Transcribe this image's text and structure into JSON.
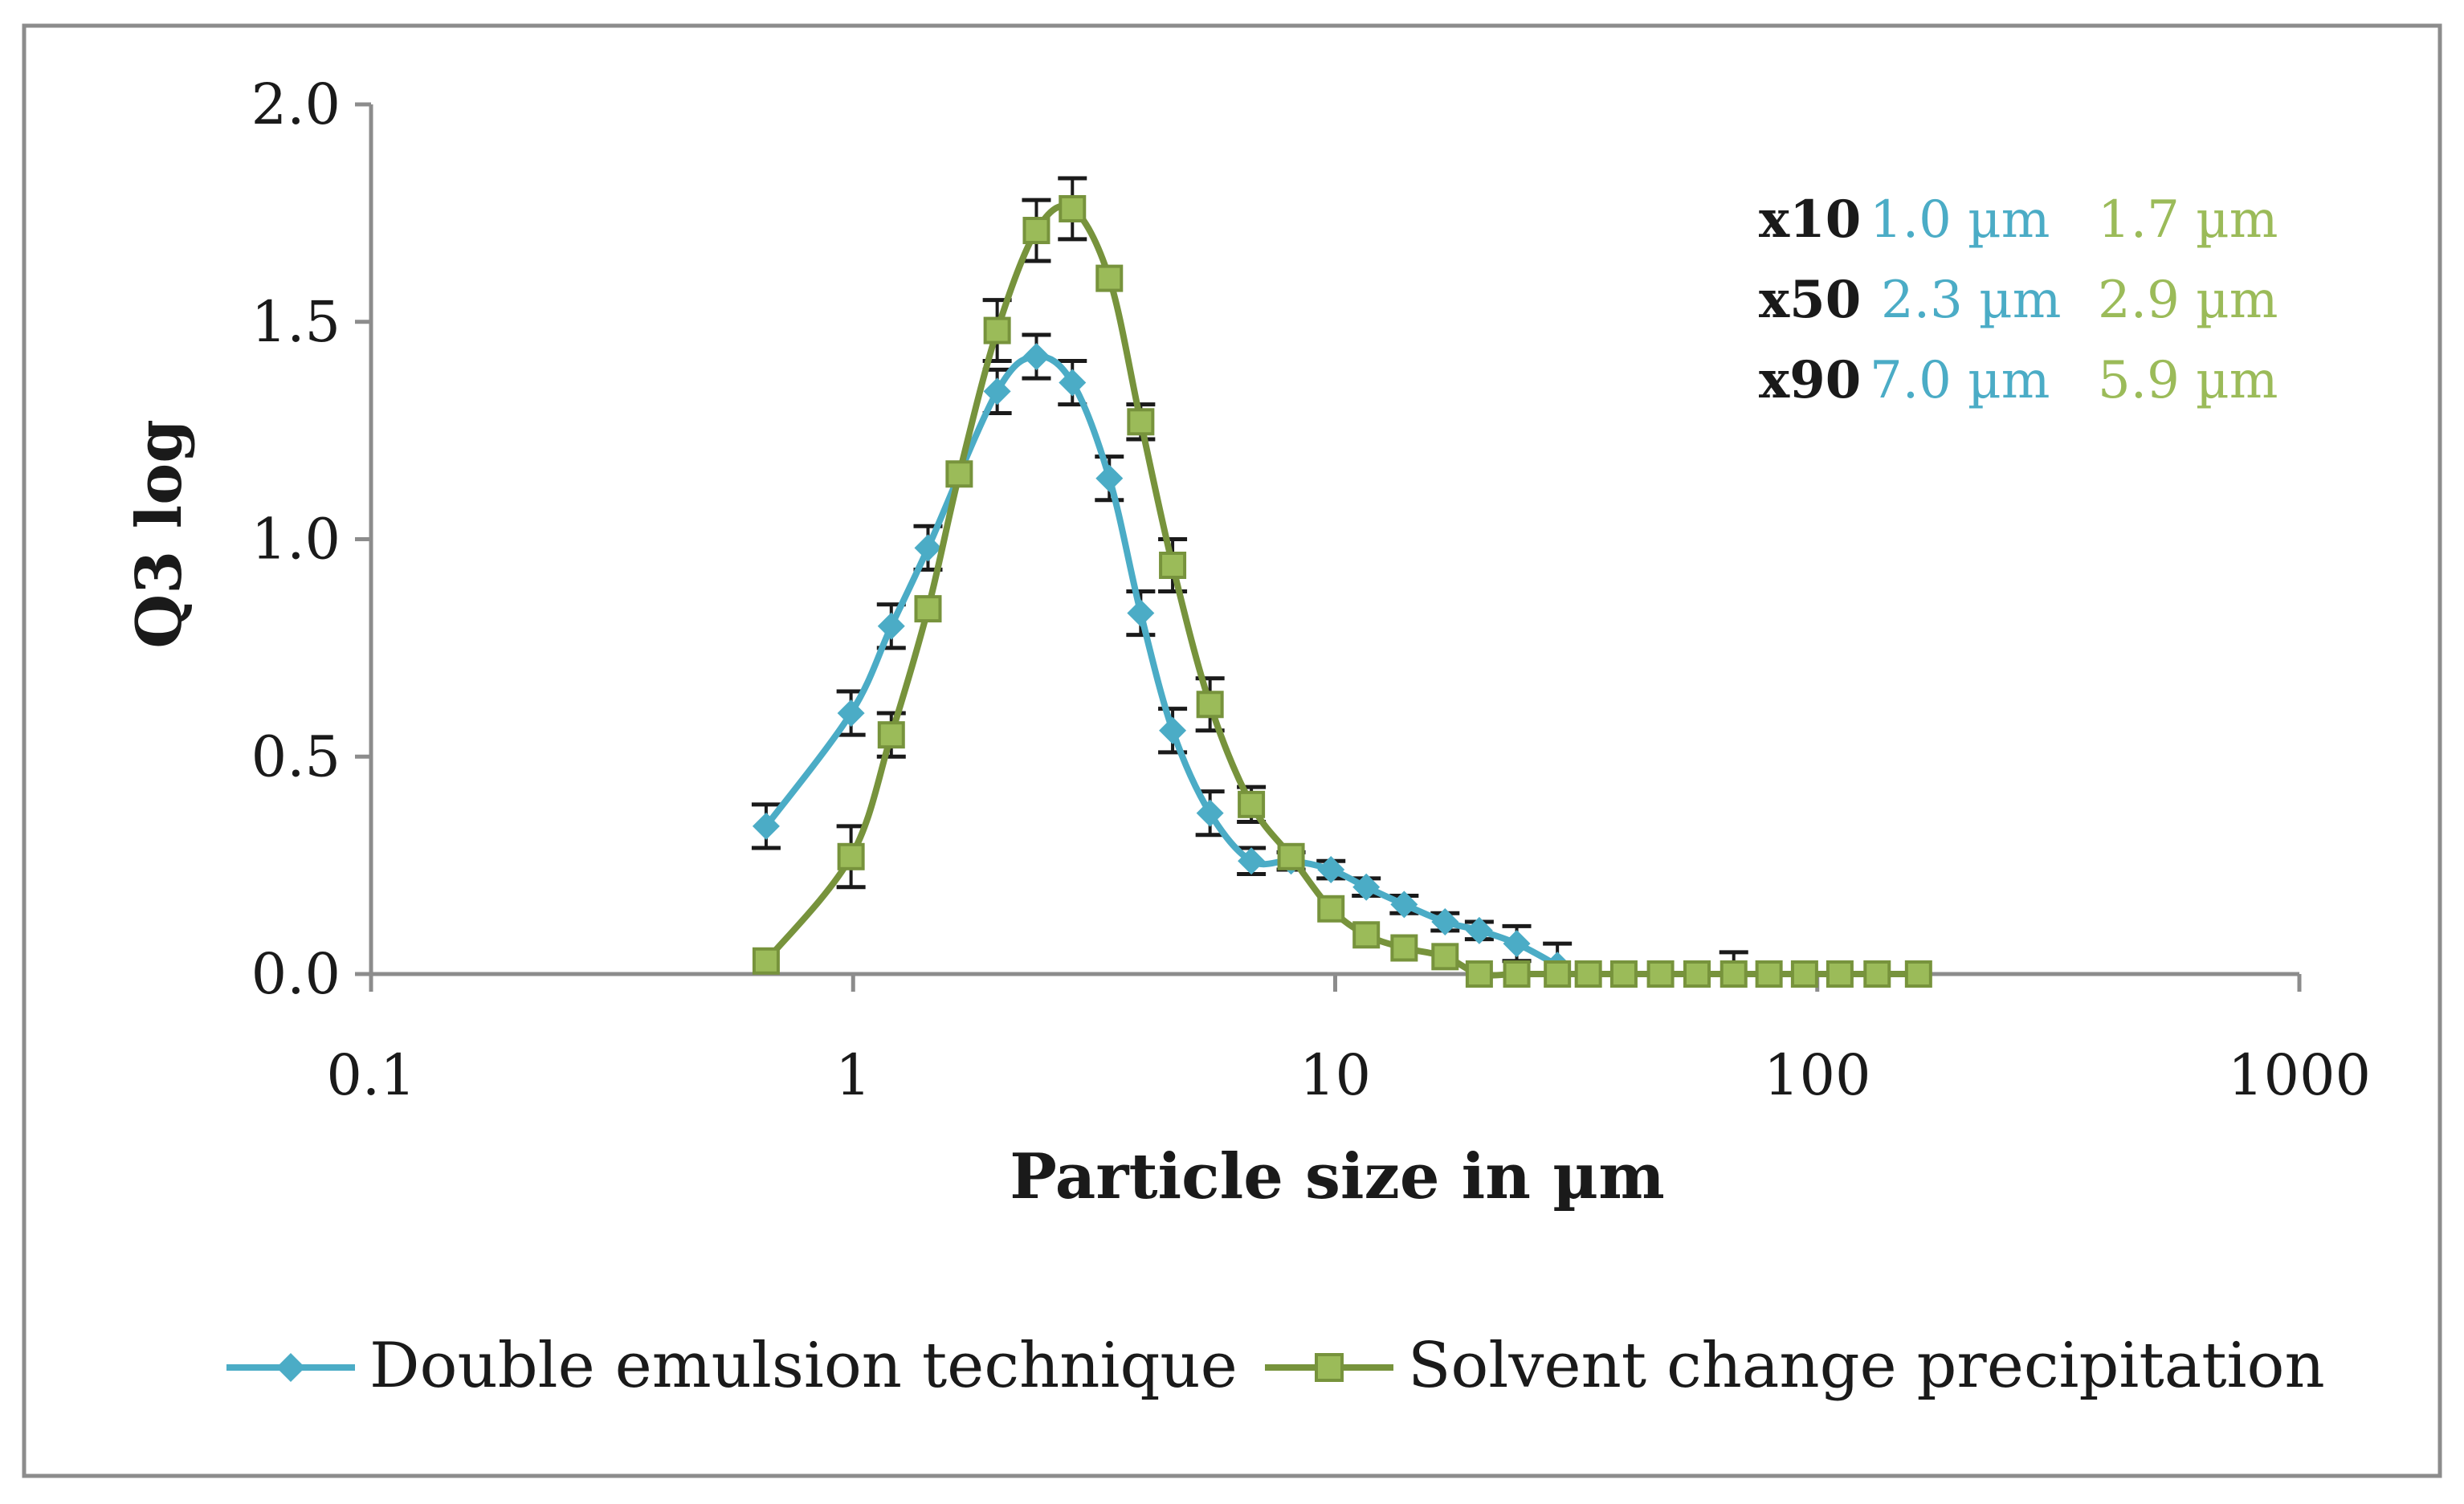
{
  "chart_data": {
    "type": "line",
    "xscale": "log",
    "xlabel": "Particle size in µm",
    "ylabel": "Q3 log",
    "xlim": [
      0.1,
      1000
    ],
    "ylim": [
      0,
      2
    ],
    "xticks": [
      0.1,
      1,
      10,
      100,
      1000
    ],
    "xtick_labels": [
      "0.1",
      "1",
      "10",
      "100",
      "1000"
    ],
    "yticks": [
      0,
      0.5,
      1,
      1.5,
      2
    ],
    "ytick_labels": [
      "0.0",
      "0.5",
      "1.0",
      "1.5",
      "2.0"
    ],
    "grid": false,
    "legend_position": "bottom",
    "series": [
      {
        "name": "Double emulsion technique",
        "color": "#4bacc6",
        "marker": "diamond",
        "x": [
          0.66,
          0.99,
          1.2,
          1.43,
          1.99,
          2.4,
          2.85,
          3.4,
          3.95,
          4.6,
          5.5,
          6.7,
          8.1,
          9.8,
          11.6,
          13.9,
          16.9,
          19.9,
          23.8,
          28.9
        ],
        "y": [
          0.34,
          0.6,
          0.8,
          0.98,
          1.34,
          1.42,
          1.36,
          1.14,
          0.83,
          0.56,
          0.37,
          0.26,
          0.26,
          0.24,
          0.2,
          0.16,
          0.12,
          0.1,
          0.07,
          0.02
        ],
        "err": [
          0.05,
          0.05,
          0.05,
          0.05,
          0.05,
          0.05,
          0.05,
          0.05,
          0.05,
          0.05,
          0.05,
          0.03,
          0.02,
          0.02,
          0.02,
          0.02,
          0.02,
          0.02,
          0.04,
          0.05
        ]
      },
      {
        "name": "Solvent change precipitation",
        "color": "#77933c",
        "marker_fill": "#9bbb59",
        "marker": "square",
        "x": [
          0.66,
          0.99,
          1.2,
          1.43,
          1.66,
          1.99,
          2.4,
          2.85,
          3.4,
          3.95,
          4.6,
          5.5,
          6.7,
          8.1,
          9.8,
          11.6,
          13.9,
          16.9,
          19.9,
          23.8,
          28.9,
          33.5,
          39.7,
          47.3,
          56.3,
          67.1,
          79.4,
          94.1,
          111.4,
          133.1,
          162.2
        ],
        "y": [
          0.03,
          0.27,
          0.55,
          0.84,
          1.15,
          1.48,
          1.71,
          1.76,
          1.6,
          1.27,
          0.94,
          0.62,
          0.39,
          0.27,
          0.15,
          0.09,
          0.06,
          0.04,
          0.0,
          0.0,
          0.0,
          0.0,
          0.0,
          0.0,
          0.0,
          0.0,
          0.0,
          0.0,
          0.0,
          0.0,
          0.0
        ],
        "err": [
          0.0,
          0.07,
          0.05,
          0.0,
          0.0,
          0.07,
          0.07,
          0.07,
          0.0,
          0.04,
          0.06,
          0.06,
          0.04,
          0.0,
          0.0,
          0.0,
          0.0,
          0.0,
          0.0,
          0.0,
          0.0,
          0.0,
          0.0,
          0.0,
          0.0,
          0.05,
          0.0,
          0.0,
          0.0,
          0.0,
          0.0
        ]
      }
    ],
    "annotations": [
      {
        "label": "x10",
        "double_emulsion": "1.0 µm",
        "solvent_change": "1.7 µm"
      },
      {
        "label": "x50",
        "double_emulsion": "2.3 µm",
        "solvent_change": "2.9 µm"
      },
      {
        "label": "x90",
        "double_emulsion": "7.0 µm",
        "solvent_change": "5.9 µm"
      }
    ]
  },
  "colors": {
    "frame": "#8c8c8c",
    "axis": "#8c8c8c",
    "text": "#1a1a1a",
    "double_emulsion": "#4bacc6",
    "solvent_change": "#9bbb59",
    "solvent_change_line": "#77933c"
  }
}
